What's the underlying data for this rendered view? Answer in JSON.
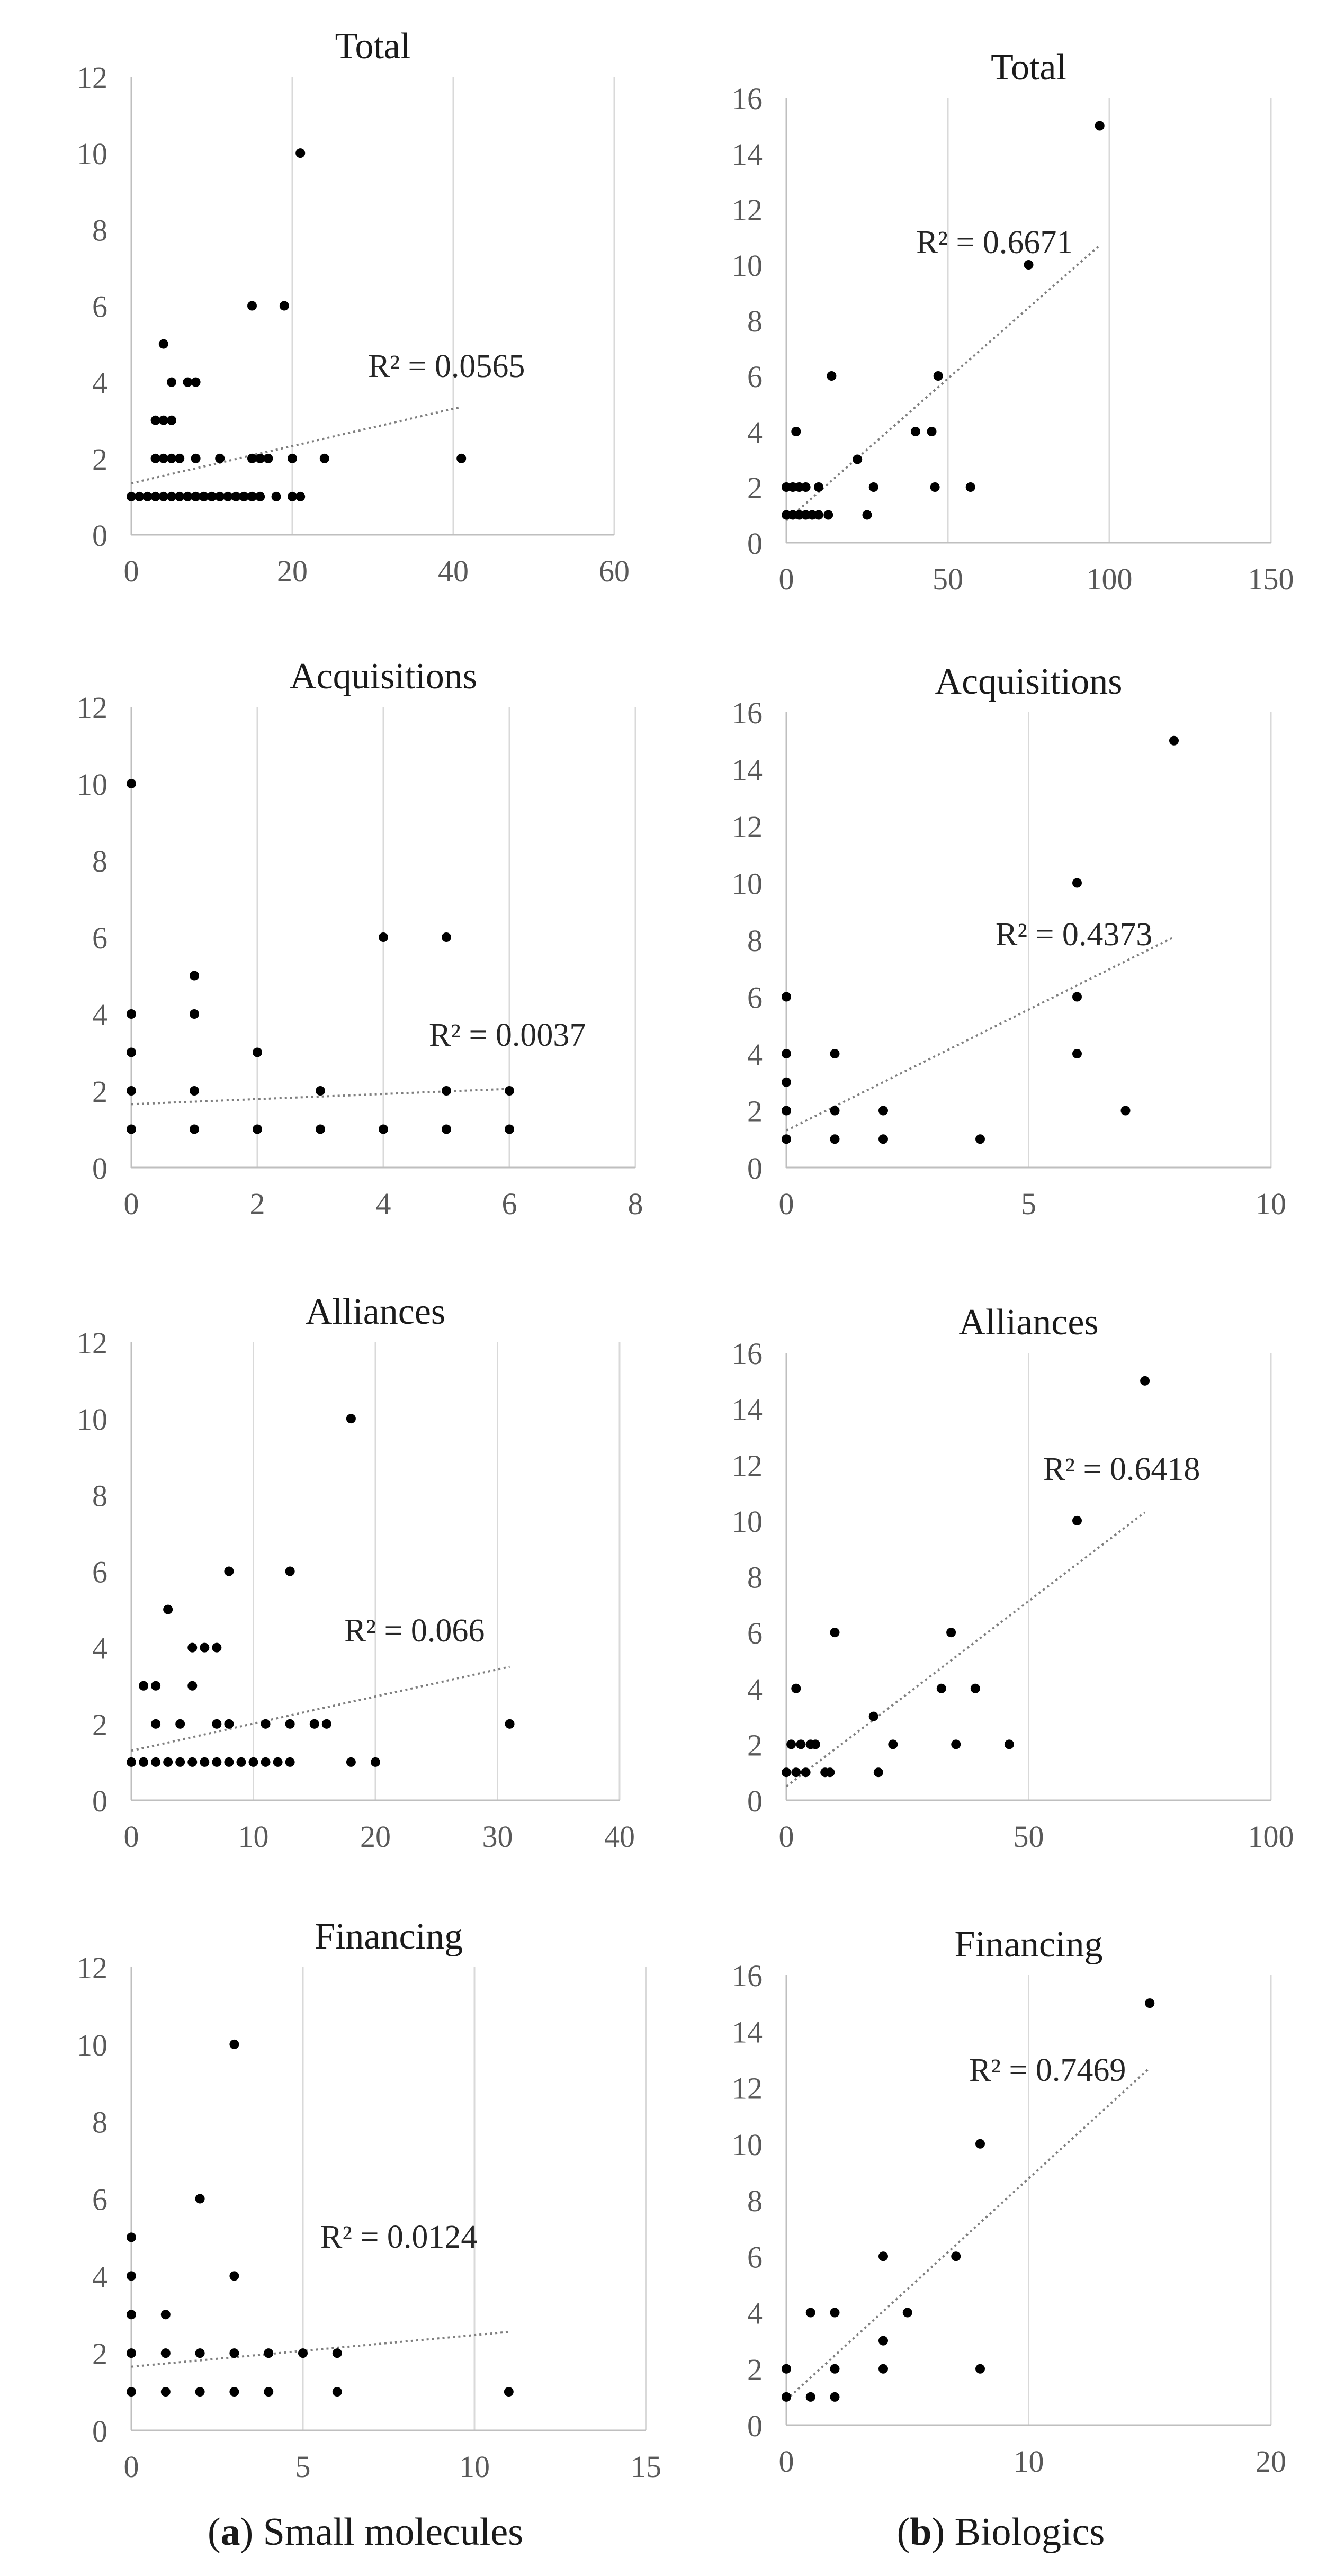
{
  "captions": {
    "a": {
      "letter": "a",
      "text": "Small molecules"
    },
    "b": {
      "letter": "b",
      "text": "Biologics"
    }
  },
  "chart_data": [
    {
      "id": "a-total",
      "type": "scatter",
      "title": "Total",
      "xlim": [
        0,
        60
      ],
      "xticks": [
        0,
        20,
        40,
        60
      ],
      "ylim": [
        0,
        12
      ],
      "yticks": [
        0,
        2,
        4,
        6,
        8,
        10,
        12
      ],
      "r2_label": "R² = 0.0565",
      "trend": {
        "x": [
          0,
          41
        ],
        "y": [
          1.35,
          3.35
        ]
      },
      "points": [
        [
          0,
          1
        ],
        [
          1,
          1
        ],
        [
          2,
          1
        ],
        [
          3,
          1
        ],
        [
          4,
          1
        ],
        [
          5,
          1
        ],
        [
          6,
          1
        ],
        [
          7,
          1
        ],
        [
          8,
          1
        ],
        [
          9,
          1
        ],
        [
          10,
          1
        ],
        [
          11,
          1
        ],
        [
          12,
          1
        ],
        [
          13,
          1
        ],
        [
          14,
          1
        ],
        [
          15,
          1
        ],
        [
          16,
          1
        ],
        [
          18,
          1
        ],
        [
          20,
          1
        ],
        [
          21,
          1
        ],
        [
          3,
          2
        ],
        [
          4,
          2
        ],
        [
          5,
          2
        ],
        [
          6,
          2
        ],
        [
          8,
          2
        ],
        [
          11,
          2
        ],
        [
          15,
          2
        ],
        [
          16,
          2
        ],
        [
          17,
          2
        ],
        [
          20,
          2
        ],
        [
          24,
          2
        ],
        [
          41,
          2
        ],
        [
          3,
          3
        ],
        [
          4,
          3
        ],
        [
          5,
          3
        ],
        [
          5,
          4
        ],
        [
          7,
          4
        ],
        [
          8,
          4
        ],
        [
          4,
          5
        ],
        [
          15,
          6
        ],
        [
          19,
          6
        ],
        [
          21,
          10
        ]
      ]
    },
    {
      "id": "b-total",
      "type": "scatter",
      "title": "Total",
      "xlim": [
        0,
        150
      ],
      "xticks": [
        0,
        50,
        100,
        150
      ],
      "ylim": [
        0,
        16
      ],
      "yticks": [
        0,
        2,
        4,
        6,
        8,
        10,
        12,
        14,
        16
      ],
      "r2_label": "R² = 0.6671",
      "trend": {
        "x": [
          0,
          97
        ],
        "y": [
          0.8,
          10.7
        ]
      },
      "points": [
        [
          0,
          1
        ],
        [
          2,
          1
        ],
        [
          4,
          1
        ],
        [
          6,
          1
        ],
        [
          8,
          1
        ],
        [
          10,
          1
        ],
        [
          13,
          1
        ],
        [
          25,
          1
        ],
        [
          0,
          2
        ],
        [
          2,
          2
        ],
        [
          4,
          2
        ],
        [
          6,
          2
        ],
        [
          10,
          2
        ],
        [
          27,
          2
        ],
        [
          46,
          2
        ],
        [
          57,
          2
        ],
        [
          22,
          3
        ],
        [
          3,
          4
        ],
        [
          40,
          4
        ],
        [
          45,
          4
        ],
        [
          14,
          6
        ],
        [
          47,
          6
        ],
        [
          75,
          10
        ],
        [
          97,
          15
        ]
      ]
    },
    {
      "id": "a-acquisitions",
      "type": "scatter",
      "title": "Acquisitions",
      "xlim": [
        0,
        8
      ],
      "xticks": [
        0,
        2,
        4,
        6,
        8
      ],
      "ylim": [
        0,
        12
      ],
      "yticks": [
        0,
        2,
        4,
        6,
        8,
        10,
        12
      ],
      "r2_label": "R² = 0.0037",
      "trend": {
        "x": [
          0,
          6
        ],
        "y": [
          1.65,
          2.05
        ]
      },
      "points": [
        [
          0,
          1
        ],
        [
          1,
          1
        ],
        [
          2,
          1
        ],
        [
          3,
          1
        ],
        [
          4,
          1
        ],
        [
          5,
          1
        ],
        [
          6,
          1
        ],
        [
          0,
          2
        ],
        [
          1,
          2
        ],
        [
          3,
          2
        ],
        [
          5,
          2
        ],
        [
          6,
          2
        ],
        [
          0,
          3
        ],
        [
          2,
          3
        ],
        [
          0,
          4
        ],
        [
          1,
          4
        ],
        [
          1,
          5
        ],
        [
          4,
          6
        ],
        [
          5,
          6
        ],
        [
          0,
          10
        ]
      ]
    },
    {
      "id": "b-acquisitions",
      "type": "scatter",
      "title": "Acquisitions",
      "xlim": [
        0,
        10
      ],
      "xticks": [
        0,
        5,
        10
      ],
      "ylim": [
        0,
        16
      ],
      "yticks": [
        0,
        2,
        4,
        6,
        8,
        10,
        12,
        14,
        16
      ],
      "r2_label": "R² = 0.4373",
      "trend": {
        "x": [
          0,
          8
        ],
        "y": [
          1.3,
          8.1
        ]
      },
      "points": [
        [
          0,
          1
        ],
        [
          1,
          1
        ],
        [
          2,
          1
        ],
        [
          4,
          1
        ],
        [
          0,
          2
        ],
        [
          1,
          2
        ],
        [
          2,
          2
        ],
        [
          7,
          2
        ],
        [
          0,
          3
        ],
        [
          0,
          4
        ],
        [
          1,
          4
        ],
        [
          6,
          4
        ],
        [
          0,
          6
        ],
        [
          6,
          6
        ],
        [
          6,
          10
        ],
        [
          8,
          15
        ]
      ]
    },
    {
      "id": "a-alliances",
      "type": "scatter",
      "title": "Alliances",
      "xlim": [
        0,
        40
      ],
      "xticks": [
        0,
        10,
        20,
        30,
        40
      ],
      "ylim": [
        0,
        12
      ],
      "yticks": [
        0,
        2,
        4,
        6,
        8,
        10,
        12
      ],
      "r2_label": "R² = 0.066",
      "trend": {
        "x": [
          0,
          31
        ],
        "y": [
          1.3,
          3.5
        ]
      },
      "points": [
        [
          0,
          1
        ],
        [
          1,
          1
        ],
        [
          2,
          1
        ],
        [
          3,
          1
        ],
        [
          4,
          1
        ],
        [
          5,
          1
        ],
        [
          6,
          1
        ],
        [
          7,
          1
        ],
        [
          8,
          1
        ],
        [
          9,
          1
        ],
        [
          10,
          1
        ],
        [
          11,
          1
        ],
        [
          12,
          1
        ],
        [
          13,
          1
        ],
        [
          18,
          1
        ],
        [
          20,
          1
        ],
        [
          2,
          2
        ],
        [
          4,
          2
        ],
        [
          7,
          2
        ],
        [
          8,
          2
        ],
        [
          11,
          2
        ],
        [
          13,
          2
        ],
        [
          15,
          2
        ],
        [
          16,
          2
        ],
        [
          31,
          2
        ],
        [
          1,
          3
        ],
        [
          2,
          3
        ],
        [
          5,
          3
        ],
        [
          5,
          4
        ],
        [
          6,
          4
        ],
        [
          7,
          4
        ],
        [
          3,
          5
        ],
        [
          8,
          6
        ],
        [
          13,
          6
        ],
        [
          18,
          10
        ]
      ]
    },
    {
      "id": "b-alliances",
      "type": "scatter",
      "title": "Alliances",
      "xlim": [
        0,
        100
      ],
      "xticks": [
        0,
        50,
        100
      ],
      "ylim": [
        0,
        16
      ],
      "yticks": [
        0,
        2,
        4,
        6,
        8,
        10,
        12,
        14,
        16
      ],
      "r2_label": "R² = 0.6418",
      "trend": {
        "x": [
          0,
          74
        ],
        "y": [
          0.5,
          10.3
        ]
      },
      "points": [
        [
          0,
          1
        ],
        [
          2,
          1
        ],
        [
          4,
          1
        ],
        [
          8,
          1
        ],
        [
          9,
          1
        ],
        [
          19,
          1
        ],
        [
          1,
          2
        ],
        [
          3,
          2
        ],
        [
          5,
          2
        ],
        [
          6,
          2
        ],
        [
          22,
          2
        ],
        [
          35,
          2
        ],
        [
          46,
          2
        ],
        [
          18,
          3
        ],
        [
          2,
          4
        ],
        [
          32,
          4
        ],
        [
          39,
          4
        ],
        [
          10,
          6
        ],
        [
          34,
          6
        ],
        [
          60,
          10
        ],
        [
          74,
          15
        ]
      ]
    },
    {
      "id": "a-financing",
      "type": "scatter",
      "title": "Financing",
      "xlim": [
        0,
        15
      ],
      "xticks": [
        0,
        5,
        10,
        15
      ],
      "ylim": [
        0,
        12
      ],
      "yticks": [
        0,
        2,
        4,
        6,
        8,
        10,
        12
      ],
      "r2_label": "R² = 0.0124",
      "trend": {
        "x": [
          0,
          11
        ],
        "y": [
          1.65,
          2.55
        ]
      },
      "points": [
        [
          0,
          1
        ],
        [
          1,
          1
        ],
        [
          2,
          1
        ],
        [
          3,
          1
        ],
        [
          4,
          1
        ],
        [
          6,
          1
        ],
        [
          11,
          1
        ],
        [
          0,
          2
        ],
        [
          1,
          2
        ],
        [
          2,
          2
        ],
        [
          3,
          2
        ],
        [
          4,
          2
        ],
        [
          5,
          2
        ],
        [
          6,
          2
        ],
        [
          0,
          3
        ],
        [
          1,
          3
        ],
        [
          0,
          4
        ],
        [
          3,
          4
        ],
        [
          0,
          5
        ],
        [
          2,
          6
        ],
        [
          3,
          10
        ]
      ]
    },
    {
      "id": "b-financing",
      "type": "scatter",
      "title": "Financing",
      "xlim": [
        0,
        20
      ],
      "xticks": [
        0,
        10,
        20
      ],
      "ylim": [
        0,
        16
      ],
      "yticks": [
        0,
        2,
        4,
        6,
        8,
        10,
        12,
        14,
        16
      ],
      "r2_label": "R² = 0.7469",
      "trend": {
        "x": [
          0,
          15
        ],
        "y": [
          0.9,
          12.7
        ]
      },
      "points": [
        [
          0,
          1
        ],
        [
          1,
          1
        ],
        [
          2,
          1
        ],
        [
          0,
          2
        ],
        [
          2,
          2
        ],
        [
          4,
          2
        ],
        [
          8,
          2
        ],
        [
          4,
          3
        ],
        [
          1,
          4
        ],
        [
          2,
          4
        ],
        [
          5,
          4
        ],
        [
          4,
          6
        ],
        [
          7,
          6
        ],
        [
          8,
          10
        ],
        [
          15,
          15
        ]
      ]
    }
  ]
}
